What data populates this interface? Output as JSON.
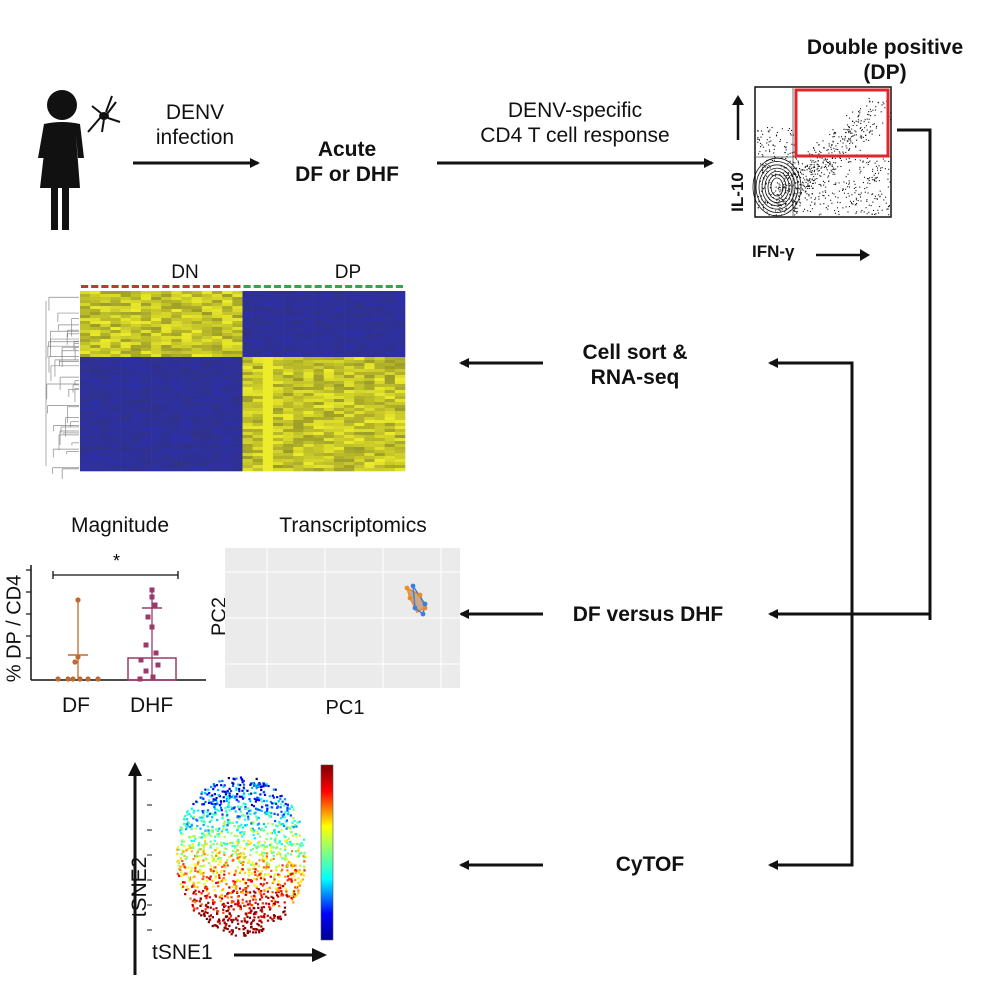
{
  "flow": {
    "step1": {
      "line1": "DENV",
      "line2": "infection"
    },
    "step2": {
      "line1": "Acute",
      "line2": "DF or DHF"
    },
    "step3": {
      "line1": "DENV-specific",
      "line2": "CD4 T cell response"
    },
    "dp_title": {
      "line1": "Double positive",
      "line2": "(DP)"
    },
    "step4": {
      "line1": "Cell sort &",
      "line2": "RNA-seq"
    },
    "step5": "DF versus DHF",
    "step6": "CyTOF"
  },
  "facs": {
    "y_label": "IL-10",
    "x_label": "IFN-γ",
    "gate_color": "#e0262b"
  },
  "heatmap": {
    "col_labels": [
      "DN",
      "DP"
    ],
    "colors": {
      "high": "#ecec2a",
      "low": "#2d2fa8",
      "mid": "#3a3a2a"
    }
  },
  "magnitude": {
    "title": "Magnitude",
    "ylabel": "% DP / CD4",
    "significance": "*",
    "categories": [
      "DF",
      "DHF"
    ],
    "colors": {
      "DF": "#c0692e",
      "DHF": "#9b3a6a"
    }
  },
  "pca": {
    "title": "Transcriptomics",
    "xlabel": "PC1",
    "ylabel": "PC2",
    "colors": {
      "group_a": "#f08a24",
      "group_b": "#3a7ee0"
    }
  },
  "tsne": {
    "xlabel": "tSNE1",
    "ylabel": "tSNE2"
  }
}
